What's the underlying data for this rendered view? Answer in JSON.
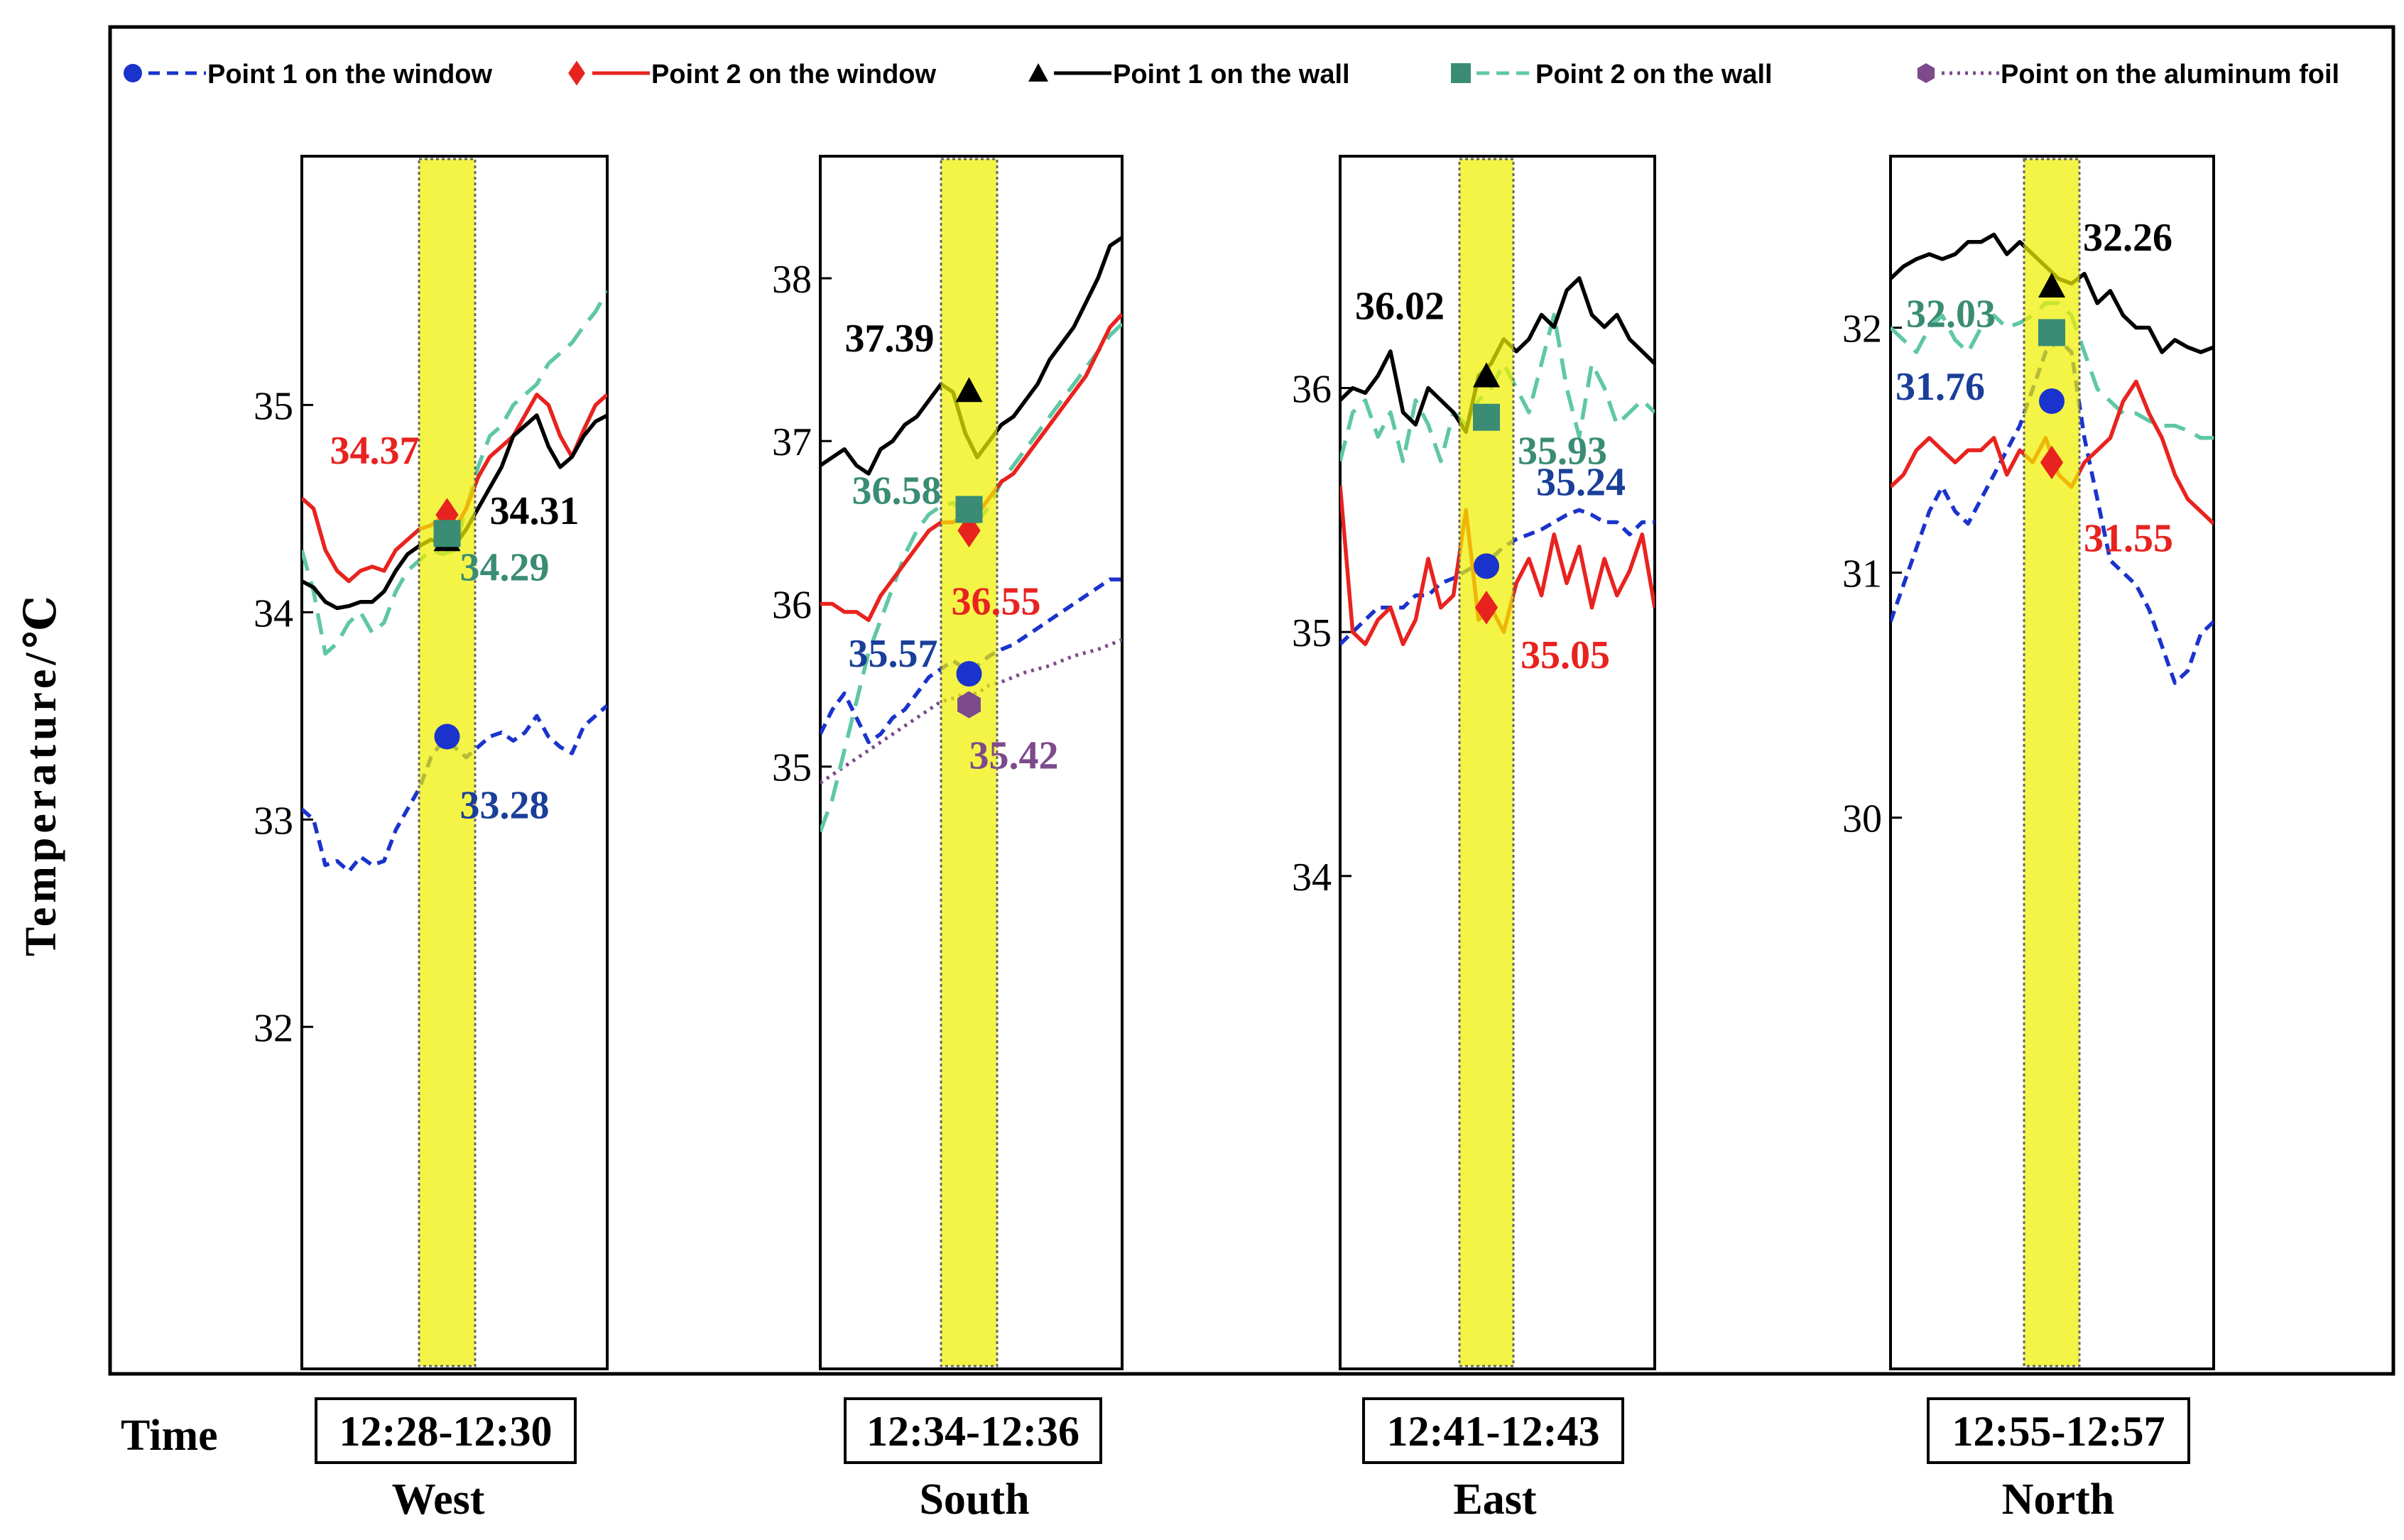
{
  "chart_data": {
    "type": "line",
    "ylabel": "Temperature/℃",
    "time_label": "Time",
    "legend": [
      {
        "key": "window1",
        "label": "Point 1 on the window",
        "color": "#1a33cc",
        "dash": "dash",
        "marker": "circle"
      },
      {
        "key": "window2",
        "label": "Point 2 on the window",
        "color": "#e8231f",
        "dash": "solid",
        "marker": "diamond"
      },
      {
        "key": "wall1",
        "label": "Point 1 on the wall",
        "color": "#000000",
        "dash": "solid",
        "marker": "triangle"
      },
      {
        "key": "wall2",
        "label": "Point 2 on the wall",
        "color": "#5fc7a4",
        "dash": "longdash",
        "marker": "square",
        "marker_color": "#3a8c74"
      },
      {
        "key": "foil",
        "label": "Point on the aluminum foil",
        "color": "#7d4a8c",
        "dash": "dot",
        "marker": "hexagon"
      }
    ],
    "panels": [
      {
        "direction": "West",
        "time": "12:28-12:30",
        "ylim": [
          30.35,
          36.2
        ],
        "yticks": [
          32,
          33,
          34,
          35
        ],
        "ytick_labels": [
          "32",
          "33",
          "34",
          "35"
        ],
        "series": {
          "window1": [
            33.05,
            33.0,
            32.78,
            32.8,
            32.75,
            32.82,
            32.78,
            32.8,
            32.95,
            33.05,
            33.15,
            33.3,
            33.38,
            33.35,
            33.3,
            33.35,
            33.4,
            33.42,
            33.38,
            33.42,
            33.5,
            33.4,
            33.35,
            33.32,
            33.45,
            33.5,
            33.55
          ],
          "window2": [
            34.55,
            34.5,
            34.3,
            34.2,
            34.15,
            34.2,
            34.22,
            34.2,
            34.3,
            34.35,
            34.4,
            34.42,
            34.46,
            34.4,
            34.5,
            34.65,
            34.75,
            34.8,
            34.85,
            34.95,
            35.05,
            35.0,
            34.85,
            34.75,
            34.88,
            35.0,
            35.05
          ],
          "window2_marker": 34.47,
          "wall1": [
            34.15,
            34.12,
            34.05,
            34.02,
            34.03,
            34.05,
            34.05,
            34.1,
            34.2,
            34.28,
            34.32,
            34.35,
            34.33,
            34.32,
            34.4,
            34.5,
            34.6,
            34.7,
            34.85,
            34.9,
            34.95,
            34.8,
            34.7,
            34.75,
            34.85,
            34.92,
            34.95
          ],
          "wall2": [
            34.3,
            34.1,
            33.8,
            33.85,
            33.95,
            34.0,
            33.9,
            33.95,
            34.1,
            34.2,
            34.25,
            34.3,
            34.28,
            34.3,
            34.5,
            34.7,
            34.85,
            34.9,
            35.0,
            35.05,
            35.1,
            35.2,
            35.25,
            35.3,
            35.38,
            35.45,
            35.55
          ]
        },
        "markers": {
          "window1": 33.4,
          "window2": 34.47,
          "wall1": 34.35,
          "wall2": 34.38
        },
        "labels": [
          {
            "key": "window2",
            "text": "34.37",
            "color": "#e8231f"
          },
          {
            "key": "wall1",
            "text": "34.31",
            "color": "#000000"
          },
          {
            "key": "wall2",
            "text": "34.29",
            "color": "#3a8c74"
          },
          {
            "key": "window1",
            "text": "33.28",
            "color": "#1a3f99"
          }
        ]
      },
      {
        "direction": "South",
        "time": "12:34-12:36",
        "ylim": [
          31.3,
          38.75
        ],
        "yticks": [
          35,
          36,
          37,
          38
        ],
        "ytick_labels": [
          "35",
          "36",
          "37",
          "38"
        ],
        "series": {
          "window1": [
            35.2,
            35.35,
            35.45,
            35.3,
            35.15,
            35.2,
            35.3,
            35.35,
            35.45,
            35.55,
            35.6,
            35.65,
            35.6,
            35.62,
            35.68,
            35.72,
            35.75,
            35.8,
            35.85,
            35.9,
            35.95,
            36.0,
            36.05,
            36.1,
            36.15,
            36.15
          ],
          "window2": [
            36.0,
            36.0,
            35.95,
            35.95,
            35.9,
            36.05,
            36.15,
            36.25,
            36.35,
            36.45,
            36.5,
            36.5,
            36.55,
            36.55,
            36.65,
            36.75,
            36.8,
            36.9,
            37.0,
            37.1,
            37.2,
            37.3,
            37.4,
            37.55,
            37.7,
            37.78
          ],
          "wall1": [
            36.85,
            36.9,
            36.95,
            36.85,
            36.8,
            36.95,
            37.0,
            37.1,
            37.15,
            37.25,
            37.35,
            37.3,
            37.05,
            36.9,
            37.0,
            37.1,
            37.15,
            37.25,
            37.35,
            37.5,
            37.6,
            37.7,
            37.85,
            38.0,
            38.2,
            38.25
          ],
          "wall2": [
            34.6,
            34.8,
            35.1,
            35.4,
            35.7,
            35.9,
            36.1,
            36.3,
            36.45,
            36.55,
            36.6,
            36.62,
            36.55,
            36.5,
            36.6,
            36.75,
            36.85,
            36.95,
            37.05,
            37.15,
            37.25,
            37.35,
            37.45,
            37.55,
            37.65,
            37.72
          ],
          "foil": [
            34.9,
            34.95,
            35.0,
            35.05,
            35.1,
            35.15,
            35.2,
            35.25,
            35.3,
            35.35,
            35.4,
            35.42,
            35.45,
            35.45,
            35.5,
            35.52,
            35.55,
            35.58,
            35.6,
            35.62,
            35.65,
            35.68,
            35.7,
            35.72,
            35.75,
            35.78
          ]
        },
        "markers": {
          "window1": 35.57,
          "window2": 36.45,
          "wall1": 37.31,
          "wall2": 36.58,
          "foil": 35.38
        },
        "labels": [
          {
            "key": "wall1",
            "text": "37.39",
            "color": "#000000"
          },
          {
            "key": "wall2",
            "text": "36.58",
            "color": "#3a8c74"
          },
          {
            "key": "window2",
            "text": "36.55",
            "color": "#e8231f"
          },
          {
            "key": "window1",
            "text": "35.57",
            "color": "#1a3f99"
          },
          {
            "key": "foil",
            "text": "35.42",
            "color": "#7d4a8c"
          }
        ]
      },
      {
        "direction": "East",
        "time": "12:41-12:43",
        "ylim": [
          31.98,
          36.95
        ],
        "yticks": [
          34,
          35,
          36
        ],
        "ytick_labels": [
          "34",
          "35",
          "36"
        ],
        "series": {
          "window1": [
            34.95,
            35.0,
            35.05,
            35.1,
            35.1,
            35.1,
            35.15,
            35.15,
            35.2,
            35.22,
            35.25,
            35.28,
            35.3,
            35.35,
            35.38,
            35.4,
            35.42,
            35.45,
            35.48,
            35.5,
            35.48,
            35.45,
            35.45,
            35.4,
            35.45,
            35.45
          ],
          "window2": [
            35.6,
            35.0,
            34.95,
            35.05,
            35.1,
            34.95,
            35.05,
            35.3,
            35.1,
            35.15,
            35.5,
            35.05,
            35.1,
            35.0,
            35.2,
            35.3,
            35.15,
            35.4,
            35.2,
            35.35,
            35.1,
            35.3,
            35.15,
            35.25,
            35.4,
            35.1
          ],
          "wall1": [
            35.95,
            36.0,
            35.98,
            36.05,
            36.15,
            35.9,
            35.85,
            36.0,
            35.95,
            35.9,
            35.82,
            36.05,
            36.1,
            36.2,
            36.15,
            36.2,
            36.3,
            36.25,
            36.4,
            36.45,
            36.3,
            36.25,
            36.3,
            36.2,
            36.15,
            36.1
          ],
          "wall2": [
            35.7,
            35.9,
            35.95,
            35.8,
            35.9,
            35.7,
            35.95,
            35.85,
            35.7,
            35.9,
            35.85,
            35.95,
            36.0,
            36.1,
            36.0,
            35.9,
            36.1,
            36.3,
            36.0,
            35.8,
            36.1,
            36.0,
            35.85,
            35.9,
            35.95,
            35.9
          ]
        },
        "markers": {
          "window1": 35.27,
          "window2": 35.1,
          "wall1": 36.05,
          "wall2": 35.88
        },
        "labels": [
          {
            "key": "wall1",
            "text": "36.02",
            "color": "#000000"
          },
          {
            "key": "wall2",
            "text": "35.93",
            "color": "#3a8c74"
          },
          {
            "key": "window1",
            "text": "35.24",
            "color": "#1a3f99"
          },
          {
            "key": "window2",
            "text": "35.05",
            "color": "#e8231f"
          }
        ]
      },
      {
        "direction": "North",
        "time": "12:55-12:57",
        "ylim": [
          27.75,
          32.7
        ],
        "yticks": [
          30,
          31,
          32
        ],
        "ytick_labels": [
          "30",
          "31",
          "32"
        ],
        "series": {
          "window1": [
            30.8,
            30.95,
            31.1,
            31.25,
            31.35,
            31.25,
            31.2,
            31.3,
            31.4,
            31.5,
            31.6,
            31.75,
            31.9,
            31.95,
            31.9,
            31.55,
            31.3,
            31.05,
            31.0,
            30.95,
            30.85,
            30.7,
            30.55,
            30.6,
            30.75,
            30.8
          ],
          "window2": [
            31.35,
            31.4,
            31.5,
            31.55,
            31.5,
            31.45,
            31.5,
            31.5,
            31.55,
            31.4,
            31.5,
            31.45,
            31.55,
            31.4,
            31.35,
            31.45,
            31.5,
            31.55,
            31.7,
            31.78,
            31.65,
            31.55,
            31.4,
            31.3,
            31.25,
            31.2
          ],
          "wall1": [
            32.2,
            32.25,
            32.28,
            32.3,
            32.28,
            32.3,
            32.35,
            32.35,
            32.38,
            32.3,
            32.35,
            32.3,
            32.25,
            32.2,
            32.18,
            32.22,
            32.1,
            32.15,
            32.05,
            32.0,
            32.0,
            31.9,
            31.95,
            31.92,
            31.9,
            31.92
          ],
          "wall2": [
            32.0,
            31.95,
            31.9,
            32.0,
            32.05,
            31.95,
            31.9,
            32.0,
            32.05,
            32.0,
            32.02,
            32.05,
            32.1,
            32.1,
            32.05,
            31.9,
            31.75,
            31.7,
            31.65,
            31.65,
            31.62,
            31.6,
            31.6,
            31.58,
            31.55,
            31.55
          ]
        },
        "markers": {
          "window1": 31.7,
          "window2": 31.45,
          "wall1": 32.17,
          "wall2": 31.98
        },
        "labels": [
          {
            "key": "wall1",
            "text": "32.26",
            "color": "#000000"
          },
          {
            "key": "wall2",
            "text": "32.03",
            "color": "#3a8c74"
          },
          {
            "key": "window1",
            "text": "31.76",
            "color": "#1a3f99"
          },
          {
            "key": "window2",
            "text": "31.55",
            "color": "#e8231f"
          }
        ]
      }
    ]
  }
}
